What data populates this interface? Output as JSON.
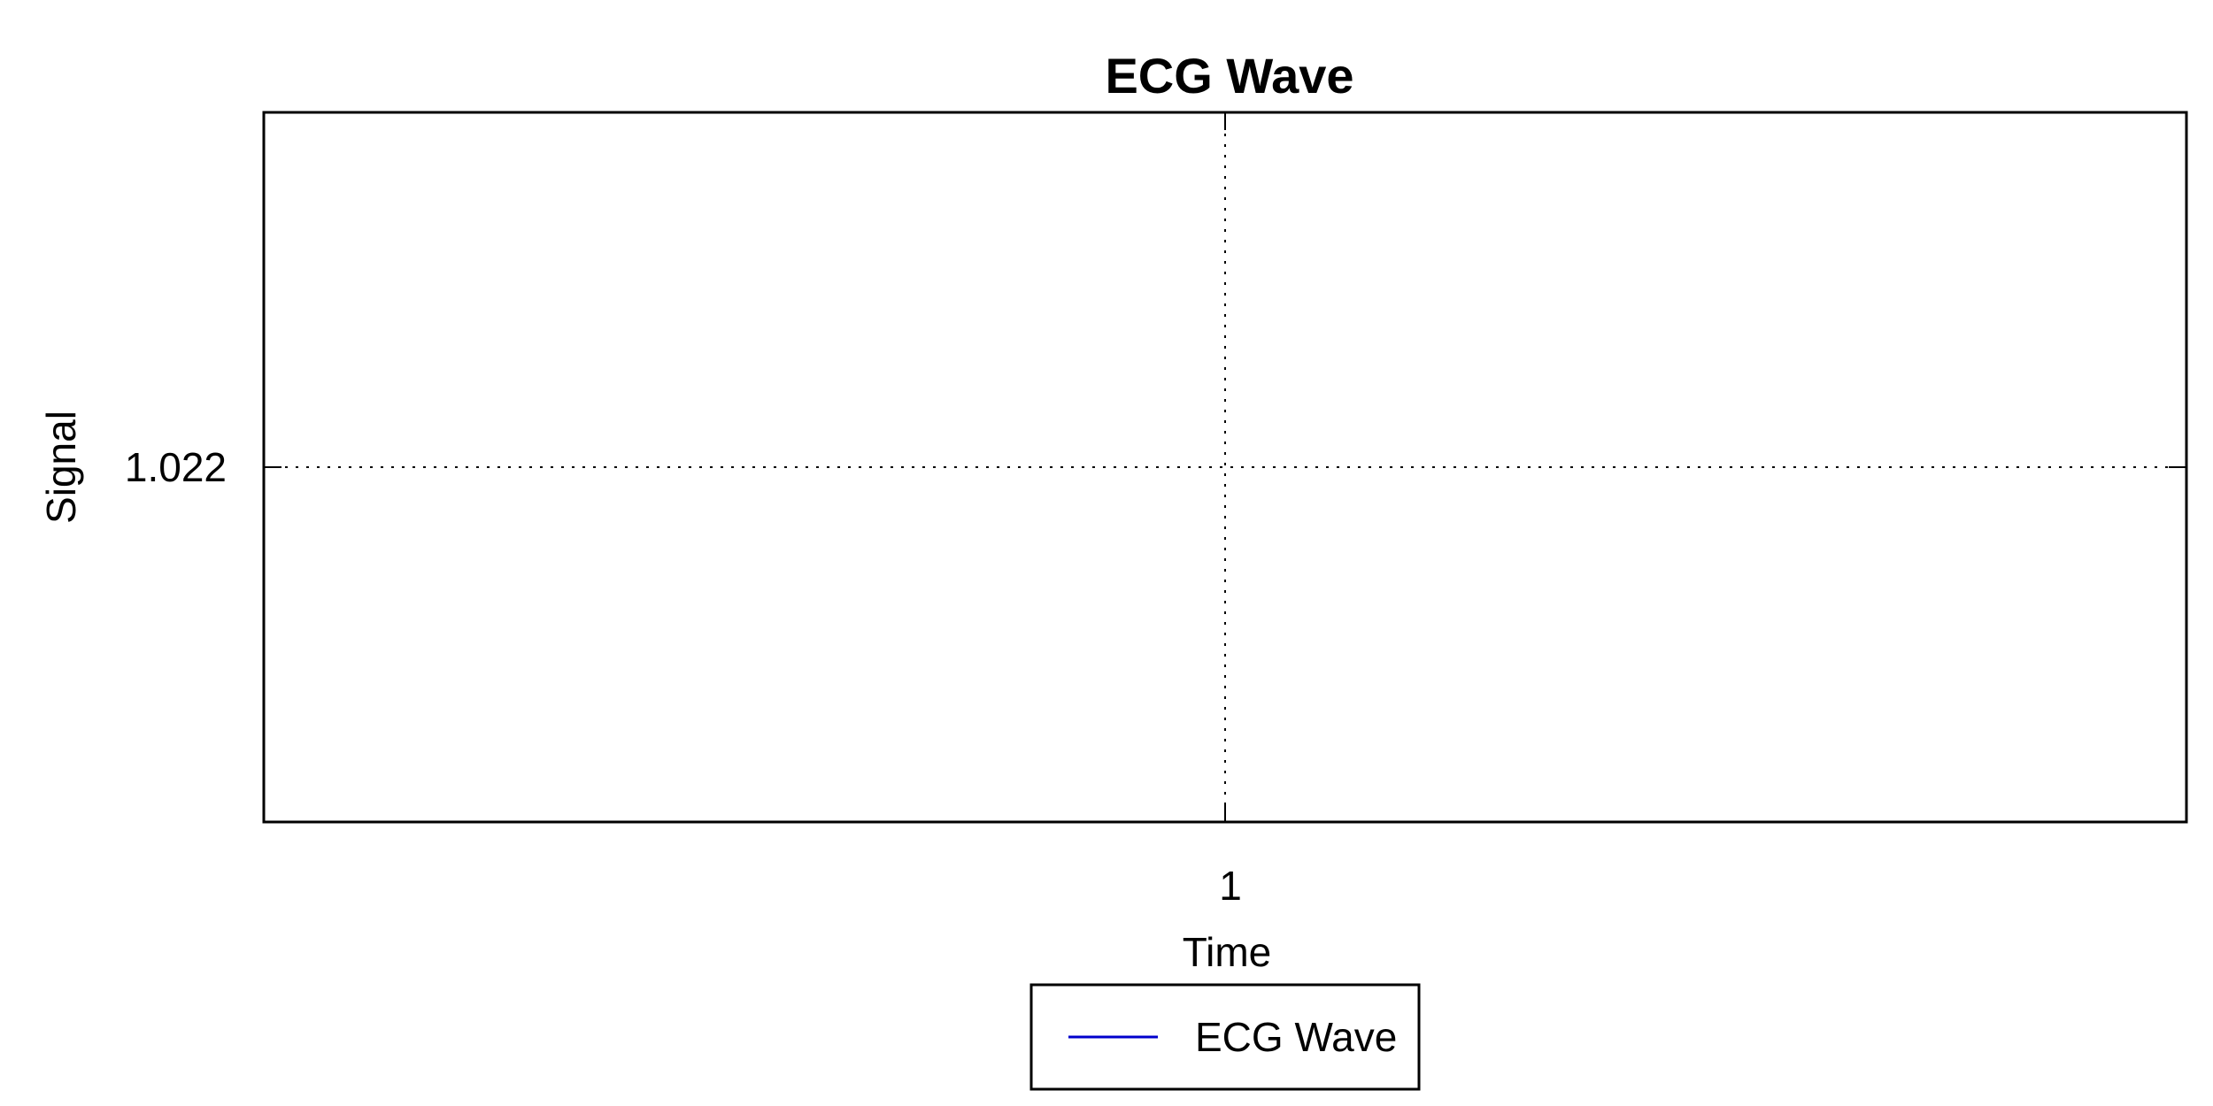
{
  "chart_data": {
    "type": "line",
    "title": "ECG Wave",
    "xlabel": "Time",
    "ylabel": "Signal",
    "x_ticks": [
      1
    ],
    "y_ticks": [
      1.022
    ],
    "y_tick_labels": [
      "1.022"
    ],
    "xlim": [
      0.5,
      1.5
    ],
    "ylim": [
      1.021,
      1.023
    ],
    "grid": true,
    "legend_position": "bottom-center",
    "series": [
      {
        "name": "ECG Wave",
        "color": "#0000cc",
        "x": [
          1
        ],
        "y": [
          1.022
        ]
      }
    ]
  }
}
